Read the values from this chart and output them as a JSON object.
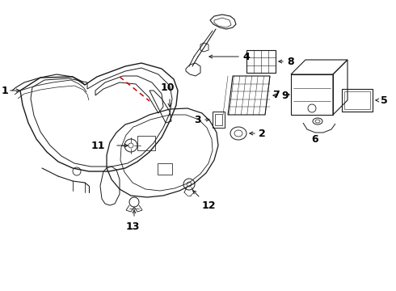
{
  "bg_color": "#ffffff",
  "line_color": "#1a1a1a",
  "label_color": "#000000",
  "red_dashed_color": "#cc0000",
  "font_size": 9
}
